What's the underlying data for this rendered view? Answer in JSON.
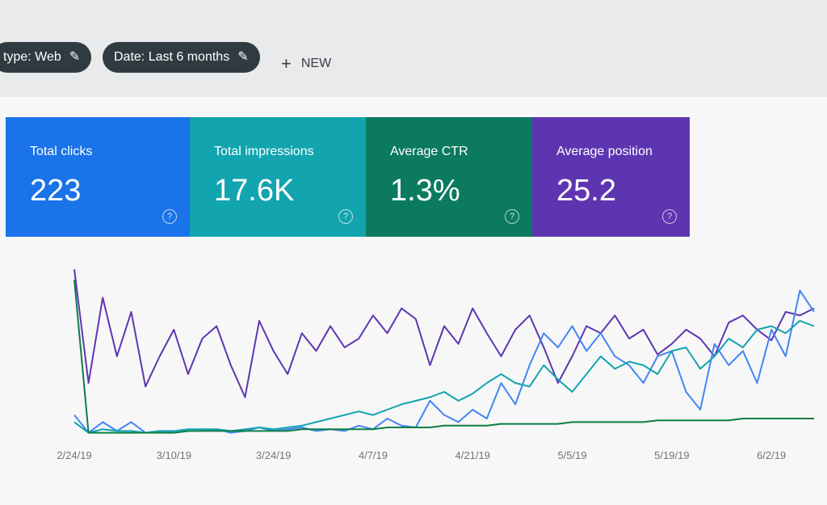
{
  "toolbar": {
    "chips": [
      "type: Web",
      "Date: Last 6 months"
    ],
    "new_button": "NEW"
  },
  "cards": [
    {
      "title": "Total clicks",
      "value": "223",
      "color": "#1a73e8"
    },
    {
      "title": "Total impressions",
      "value": "17.6K",
      "color": "#12a4af"
    },
    {
      "title": "Average CTR",
      "value": "1.3%",
      "color": "#0b7a5f"
    },
    {
      "title": "Average position",
      "value": "25.2",
      "color": "#5e35b1"
    }
  ],
  "chart_data": {
    "type": "line",
    "categories": [
      "2/24/19",
      null,
      null,
      null,
      null,
      null,
      null,
      "3/10/19",
      null,
      null,
      null,
      null,
      null,
      null,
      "3/24/19",
      null,
      null,
      null,
      null,
      null,
      null,
      "4/7/19",
      null,
      null,
      null,
      null,
      null,
      null,
      "4/21/19",
      null,
      null,
      null,
      null,
      null,
      null,
      "5/5/19",
      null,
      null,
      null,
      null,
      null,
      null,
      "5/19/19",
      null,
      null,
      null,
      null,
      null,
      null,
      "6/2/19",
      null,
      null,
      null
    ],
    "ylim": [
      0,
      100
    ],
    "series": [
      {
        "color": "#5e35b1",
        "values": [
          94,
          30,
          78,
          45,
          70,
          28,
          45,
          60,
          35,
          55,
          62,
          40,
          22,
          65,
          48,
          35,
          58,
          48,
          62,
          50,
          55,
          68,
          58,
          72,
          66,
          40,
          62,
          52,
          72,
          58,
          45,
          60,
          68,
          50,
          30,
          45,
          62,
          58,
          68,
          55,
          60,
          46,
          52,
          60,
          55,
          45,
          64,
          68,
          60,
          54,
          70,
          68,
          72
        ]
      },
      {
        "color": "#4285f4",
        "values": [
          12,
          2,
          8,
          3,
          8,
          2,
          3,
          2,
          3,
          3,
          4,
          2,
          3,
          5,
          3,
          4,
          5,
          3,
          4,
          3,
          6,
          4,
          10,
          6,
          5,
          20,
          12,
          8,
          15,
          10,
          30,
          18,
          40,
          58,
          50,
          62,
          48,
          58,
          45,
          40,
          30,
          45,
          48,
          25,
          15,
          52,
          40,
          48,
          30,
          60,
          45,
          82,
          70
        ]
      },
      {
        "color": "#12a4af",
        "values": [
          8,
          2,
          4,
          3,
          3,
          2,
          3,
          3,
          4,
          4,
          4,
          3,
          4,
          5,
          4,
          5,
          6,
          8,
          10,
          12,
          14,
          12,
          15,
          18,
          20,
          22,
          25,
          20,
          24,
          30,
          35,
          30,
          28,
          40,
          32,
          25,
          35,
          45,
          38,
          42,
          40,
          35,
          48,
          50,
          38,
          45,
          55,
          50,
          60,
          62,
          58,
          65,
          62
        ]
      },
      {
        "color": "#0b8043",
        "values": [
          88,
          2,
          2,
          2,
          2,
          2,
          2,
          2,
          3,
          3,
          3,
          3,
          3,
          3,
          3,
          3,
          4,
          4,
          4,
          4,
          4,
          4,
          5,
          5,
          5,
          5,
          6,
          6,
          6,
          6,
          7,
          7,
          7,
          7,
          7,
          8,
          8,
          8,
          8,
          8,
          8,
          9,
          9,
          9,
          9,
          9,
          9,
          10,
          10,
          10,
          10,
          10,
          10
        ]
      }
    ]
  }
}
